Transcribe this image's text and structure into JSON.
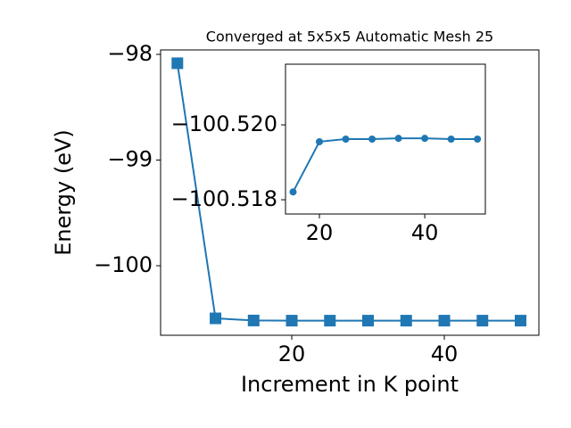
{
  "chart_data": [
    {
      "type": "line",
      "title": "Converged at 5x5x5 Automatic Mesh 25",
      "x_label": "Increment in K point",
      "y_label": "Energy (eV)",
      "x": [
        5,
        10,
        15,
        20,
        25,
        30,
        35,
        40,
        45,
        50
      ],
      "series": [
        {
          "color": "#1f77b4",
          "marker": "square",
          "values": [
            -98.084,
            -100.498,
            -100.5182,
            -100.5196,
            -100.5196,
            -100.5196,
            -100.5196,
            -100.5196,
            -100.5196,
            -100.5196
          ]
        }
      ],
      "xlim": [
        2.8,
        52.4
      ],
      "ylim": [
        -100.658,
        -97.958
      ],
      "xticks": [
        20,
        40
      ],
      "yticks": [
        {
          "value": -100,
          "label": "−100"
        },
        {
          "value": -99,
          "label": "−99"
        },
        {
          "value": -98,
          "label": "−98"
        }
      ]
    },
    {
      "type": "line",
      "x": [
        15,
        20,
        25,
        30,
        35,
        40,
        45,
        50
      ],
      "series": [
        {
          "color": "#1f77b4",
          "marker": "circle",
          "values": [
            -100.51821,
            -100.51955,
            -100.51962,
            -100.51962,
            -100.51964,
            -100.51964,
            -100.51962,
            -100.51962
          ]
        }
      ],
      "xlim": [
        13.56,
        51.5
      ],
      "ylim": [
        -100.51762,
        -100.52162
      ],
      "xticks": [
        20,
        40
      ],
      "yticks": [
        {
          "value": -100.518,
          "label": "−100.518"
        },
        {
          "value": -100.52,
          "label": "−100.520"
        }
      ]
    }
  ]
}
